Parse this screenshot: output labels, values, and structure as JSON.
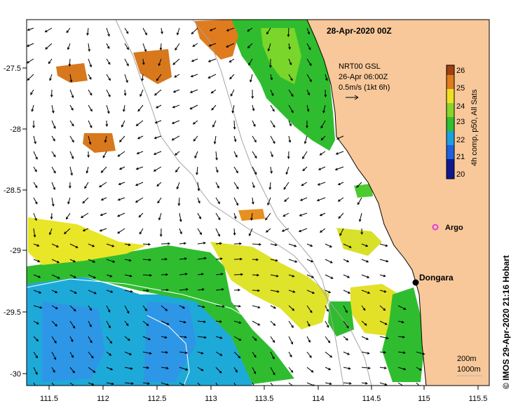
{
  "map": {
    "date_title": "28-Apr-2020 00Z",
    "current_legend": {
      "line1": "NRT00 GSL",
      "line2": "26-Apr 06:00Z",
      "line3": "0.5m/s (1kt 6h)"
    },
    "colorbar": {
      "label": "4h comp, p50, All Sats",
      "ticks": [
        "26",
        "25",
        "24",
        "23",
        "22",
        "21",
        "20"
      ],
      "vmin": 20,
      "vmax": 26.3
    },
    "argo_label": "Argo",
    "city_label": "Dongara",
    "credit": "© IMOS 29-Apr-2020 21:16 Hobart",
    "isobath_labels": {
      "line1": "200m",
      "line2": "1000m"
    },
    "x_ticks": [
      "111.5",
      "112",
      "112.5",
      "113",
      "113.5",
      "114",
      "114.5",
      "115",
      "115.5"
    ],
    "y_ticks": [
      "-27.5",
      "-28",
      "-28.5",
      "-29",
      "-29.5",
      "-30"
    ],
    "colors": {
      "land": "#f8c89a",
      "coast": "#000000",
      "isobath": "#a0a0a0",
      "argo": "#e23ce0",
      "sst_warm": "#e07b1e",
      "sst_mid": "#f0e020",
      "sst_green": "#30c030",
      "sst_cool": "#1ca0e0"
    }
  }
}
